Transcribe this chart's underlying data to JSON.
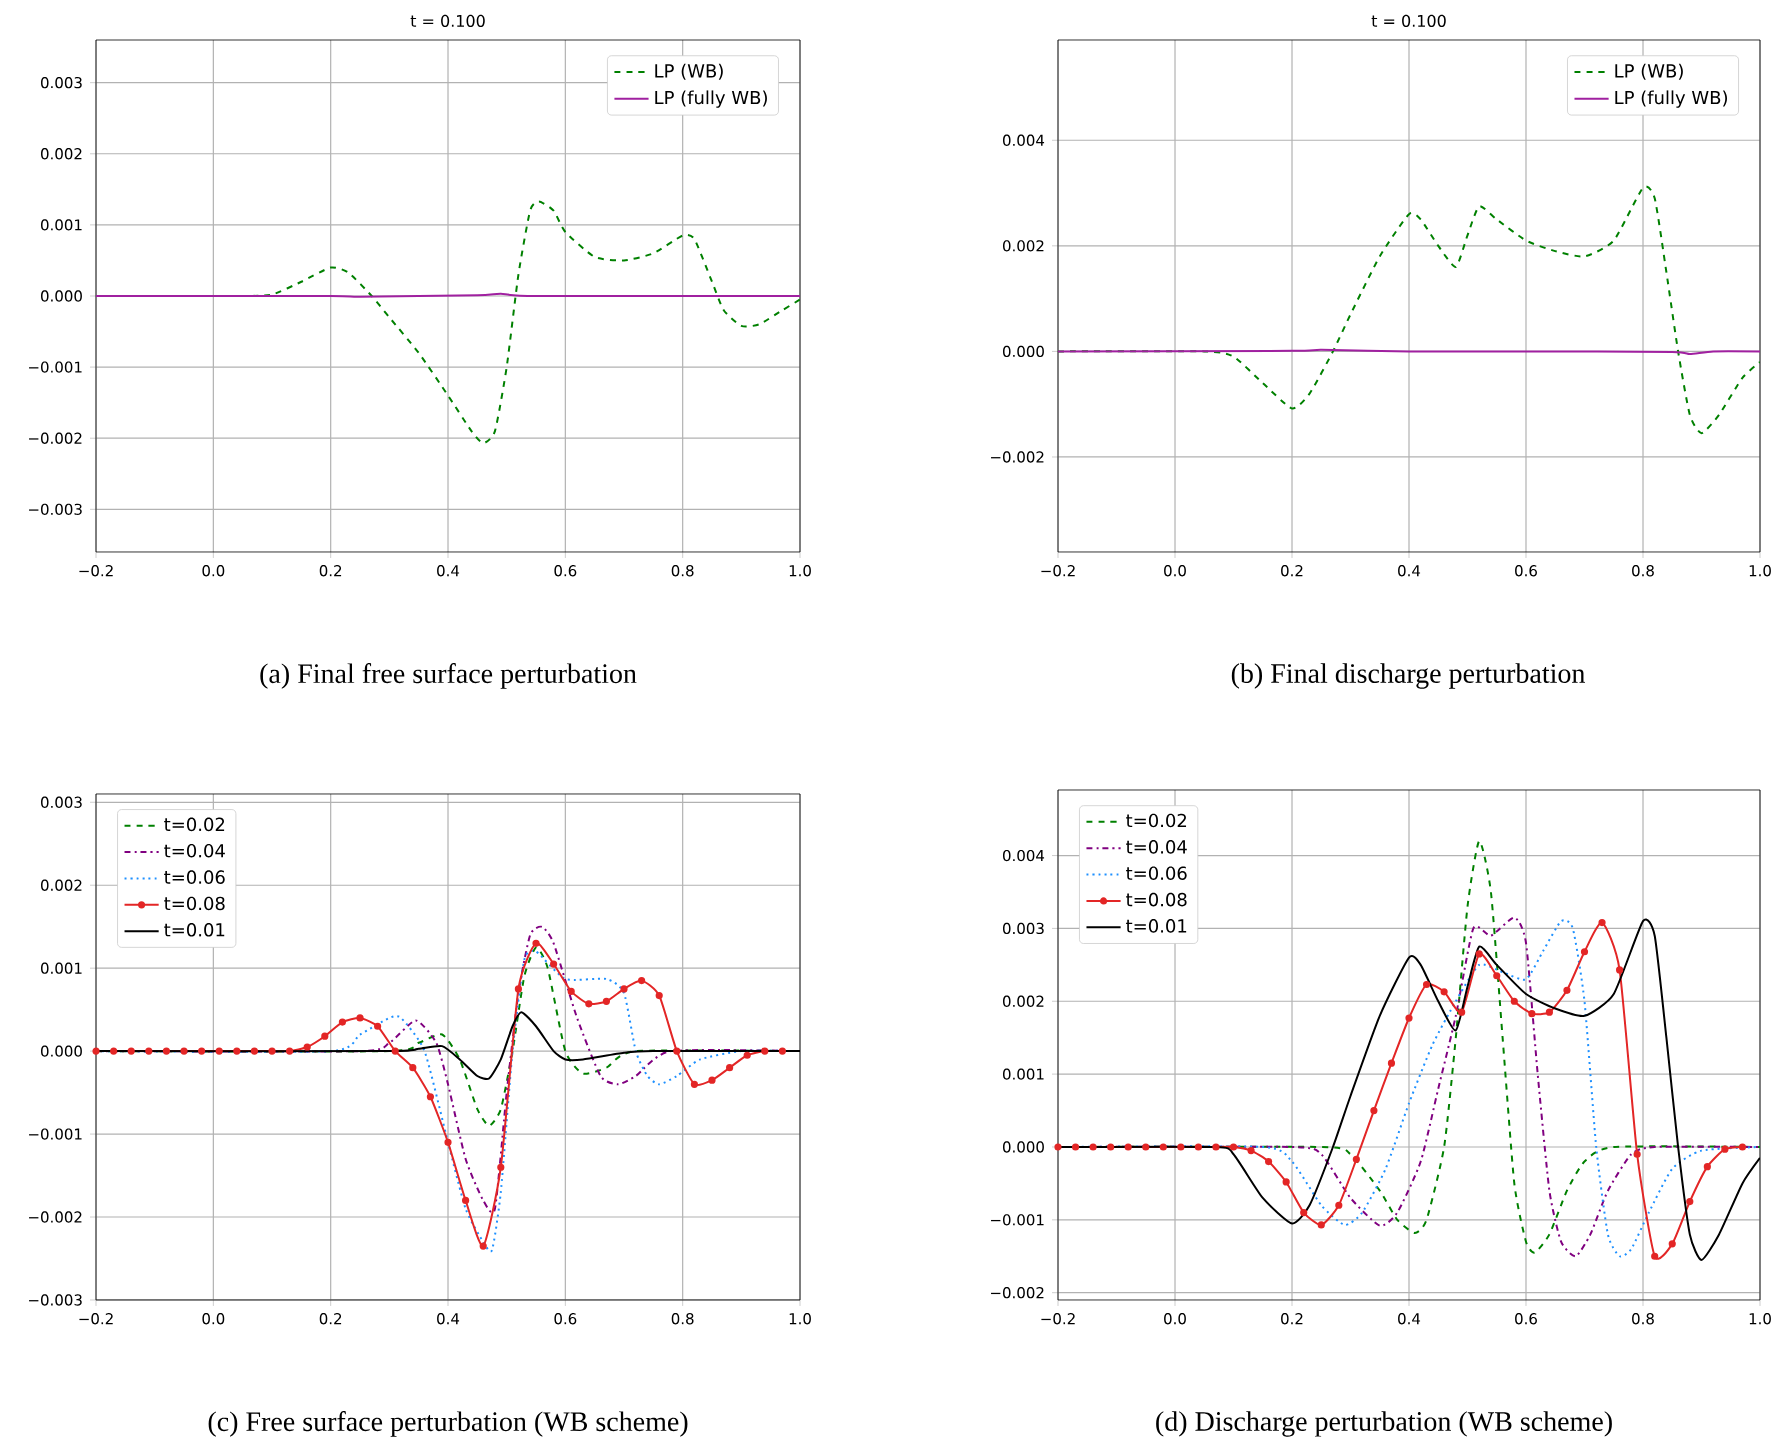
{
  "chart_data": [
    {
      "type": "line",
      "title": "t = 0.100",
      "annotations": [
        "(a) Final free surface perturbation"
      ],
      "xlim": [
        -0.2,
        1.0
      ],
      "ylim": [
        -0.0036,
        0.0036
      ],
      "grid": true,
      "legend": "top right",
      "xticks": [
        {
          "value": -0.2,
          "label": "−0.2"
        },
        {
          "value": 0,
          "label": "0.0"
        },
        {
          "value": 0.2,
          "label": "0.2"
        },
        {
          "value": 0.4,
          "label": "0.4"
        },
        {
          "value": 0.6,
          "label": "0.6"
        },
        {
          "value": 0.8,
          "label": "0.8"
        },
        {
          "value": 1.0,
          "label": "1.0"
        }
      ],
      "yticks": [
        {
          "value": -0.003,
          "label": "−0.003"
        },
        {
          "value": -0.002,
          "label": "−0.002"
        },
        {
          "value": -0.001,
          "label": "−0.001"
        },
        {
          "value": 0,
          "label": "0.000"
        },
        {
          "value": 0.001,
          "label": "0.001"
        },
        {
          "value": 0.002,
          "label": "0.002"
        },
        {
          "value": 0.003,
          "label": "0.003"
        }
      ],
      "series": [
        {
          "name": "LP (WB)",
          "color": "#008000",
          "line_style": "dashed",
          "x": [
            -0.2,
            0.05,
            0.1,
            0.15,
            0.2,
            0.23,
            0.27,
            0.3,
            0.35,
            0.4,
            0.44,
            0.46,
            0.48,
            0.5,
            0.52,
            0.54,
            0.555,
            0.58,
            0.6,
            0.65,
            0.7,
            0.75,
            0.8,
            0.82,
            0.85,
            0.87,
            0.9,
            0.93,
            0.97,
            1.0
          ],
          "values": [
            0,
            0,
            2e-05,
            0.0002,
            0.0004,
            0.00033,
            0,
            -0.0003,
            -0.0008,
            -0.0014,
            -0.0019,
            -0.00207,
            -0.0019,
            -0.001,
            0.0003,
            0.0012,
            0.00133,
            0.0012,
            0.0009,
            0.00055,
            0.0005,
            0.0006,
            0.00085,
            0.0008,
            0.0002,
            -0.0002,
            -0.00042,
            -0.0004,
            -0.0002,
            -5e-05
          ]
        },
        {
          "name": "LP (fully WB)",
          "color": "#a020a0",
          "line_style": "solid",
          "x": [
            -0.2,
            0.2,
            0.25,
            0.45,
            0.49,
            0.55,
            1.0
          ],
          "values": [
            0,
            0,
            -1e-05,
            1e-05,
            3e-05,
            0,
            0
          ]
        }
      ]
    },
    {
      "type": "line",
      "title": "t = 0.100",
      "annotations": [
        "(b) Final discharge perturbation"
      ],
      "xlim": [
        -0.2,
        1.0
      ],
      "ylim": [
        -0.0038,
        0.0059
      ],
      "grid": true,
      "legend": "top right",
      "xticks": [
        {
          "value": -0.2,
          "label": "−0.2"
        },
        {
          "value": 0,
          "label": "0.0"
        },
        {
          "value": 0.2,
          "label": "0.2"
        },
        {
          "value": 0.4,
          "label": "0.4"
        },
        {
          "value": 0.6,
          "label": "0.6"
        },
        {
          "value": 0.8,
          "label": "0.8"
        },
        {
          "value": 1.0,
          "label": "1.0"
        }
      ],
      "yticks": [
        {
          "value": -0.002,
          "label": "−0.002"
        },
        {
          "value": 0,
          "label": "0.000"
        },
        {
          "value": 0.002,
          "label": "0.002"
        },
        {
          "value": 0.004,
          "label": "0.004"
        }
      ],
      "series": [
        {
          "name": "LP (WB)",
          "color": "#008000",
          "line_style": "dashed",
          "x": [
            -0.2,
            0.05,
            0.1,
            0.15,
            0.2,
            0.23,
            0.27,
            0.3,
            0.35,
            0.4,
            0.42,
            0.45,
            0.48,
            0.5,
            0.52,
            0.55,
            0.6,
            0.65,
            0.7,
            0.75,
            0.8,
            0.82,
            0.84,
            0.86,
            0.88,
            0.9,
            0.93,
            0.97,
            1.0
          ],
          "values": [
            0,
            0,
            -0.0001,
            -0.0006,
            -0.00108,
            -0.0008,
            0,
            0.0007,
            0.0018,
            0.0026,
            0.0025,
            0.002,
            0.0016,
            0.0022,
            0.00275,
            0.0025,
            0.0021,
            0.0019,
            0.0018,
            0.0021,
            0.0031,
            0.0029,
            0.0015,
            0,
            -0.0012,
            -0.00155,
            -0.0012,
            -0.0005,
            -0.0002
          ]
        },
        {
          "name": "LP (fully WB)",
          "color": "#a020a0",
          "line_style": "solid",
          "x": [
            -0.2,
            0.2,
            0.25,
            0.4,
            0.6,
            0.85,
            0.88,
            0.92,
            1.0
          ],
          "values": [
            0,
            1e-05,
            3e-05,
            0,
            0,
            -1e-05,
            -5e-05,
            0,
            0
          ]
        }
      ]
    },
    {
      "type": "line",
      "annotations": [
        "(c) Free surface perturbation (WB scheme)"
      ],
      "xlim": [
        -0.2,
        1.0
      ],
      "ylim": [
        -0.003,
        0.0031
      ],
      "grid": true,
      "legend": "top left",
      "xticks": [
        {
          "value": -0.2,
          "label": "−0.2"
        },
        {
          "value": 0,
          "label": "0.0"
        },
        {
          "value": 0.2,
          "label": "0.2"
        },
        {
          "value": 0.4,
          "label": "0.4"
        },
        {
          "value": 0.6,
          "label": "0.6"
        },
        {
          "value": 0.8,
          "label": "0.8"
        },
        {
          "value": 1.0,
          "label": "1.0"
        }
      ],
      "yticks": [
        {
          "value": -0.003,
          "label": "−0.003"
        },
        {
          "value": -0.002,
          "label": "−0.002"
        },
        {
          "value": -0.001,
          "label": "−0.001"
        },
        {
          "value": 0,
          "label": "0.000"
        },
        {
          "value": 0.001,
          "label": "0.001"
        },
        {
          "value": 0.002,
          "label": "0.002"
        },
        {
          "value": 0.003,
          "label": "0.003"
        }
      ],
      "series": [
        {
          "name": "t=0.02",
          "color": "#008000",
          "line_style": "dashed",
          "x": [
            -0.2,
            0.3,
            0.35,
            0.39,
            0.42,
            0.45,
            0.47,
            0.49,
            0.51,
            0.53,
            0.55,
            0.57,
            0.6,
            0.63,
            0.67,
            0.72,
            1.0
          ],
          "values": [
            0,
            0,
            0.0001,
            0.0002,
            -0.0001,
            -0.0007,
            -0.0009,
            -0.0007,
            0,
            0.0009,
            0.00125,
            0.001,
            0,
            -0.00027,
            -0.0002,
            0,
            0
          ]
        },
        {
          "name": "t=0.04",
          "color": "#800080",
          "line_style": "dashdot",
          "x": [
            -0.2,
            0.25,
            0.3,
            0.345,
            0.38,
            0.4,
            0.43,
            0.46,
            0.48,
            0.5,
            0.52,
            0.54,
            0.56,
            0.58,
            0.62,
            0.66,
            0.69,
            0.72,
            0.78,
            1.0
          ],
          "values": [
            0,
            0,
            0.0001,
            0.00037,
            0.0001,
            -0.0004,
            -0.0013,
            -0.0018,
            -0.0019,
            -0.0005,
            0.0007,
            0.0014,
            0.0015,
            0.0013,
            0.0004,
            -0.0003,
            -0.0004,
            -0.0003,
            0,
            0
          ]
        },
        {
          "name": "t=0.06",
          "color": "#1e90ff",
          "line_style": "dotted",
          "x": [
            -0.2,
            0.2,
            0.25,
            0.3,
            0.32,
            0.36,
            0.4,
            0.43,
            0.46,
            0.475,
            0.49,
            0.51,
            0.53,
            0.55,
            0.6,
            0.67,
            0.7,
            0.72,
            0.74,
            0.76,
            0.79,
            0.83,
            0.9,
            1.0
          ],
          "values": [
            0,
            0,
            0.0002,
            0.0004,
            0.0004,
            0,
            -0.0011,
            -0.0019,
            -0.0023,
            -0.0024,
            -0.0017,
            0,
            0.0011,
            0.0012,
            0.00087,
            0.00087,
            0.0007,
            0,
            -0.0003,
            -0.0004,
            -0.0003,
            -0.0001,
            0,
            0
          ]
        },
        {
          "name": "t=0.08",
          "color": "#e32626",
          "line_style": "solid",
          "marker": "circle",
          "x": [
            -0.2,
            -0.17,
            -0.14,
            -0.11,
            -0.08,
            -0.05,
            -0.02,
            0.01,
            0.04,
            0.07,
            0.1,
            0.13,
            0.16,
            0.19,
            0.22,
            0.25,
            0.28,
            0.31,
            0.34,
            0.37,
            0.4,
            0.43,
            0.46,
            0.49,
            0.52,
            0.55,
            0.58,
            0.61,
            0.64,
            0.67,
            0.7,
            0.73,
            0.76,
            0.79,
            0.82,
            0.85,
            0.88,
            0.91,
            0.94,
            0.97
          ],
          "values": [
            0,
            0,
            0,
            0,
            0,
            0,
            0,
            0,
            0,
            0,
            0,
            0,
            5e-05,
            0.00018,
            0.00035,
            0.0004,
            0.0003,
            0,
            -0.0002,
            -0.00055,
            -0.0011,
            -0.0018,
            -0.00235,
            -0.0014,
            0.00075,
            0.0013,
            0.00105,
            0.00072,
            0.00057,
            0.0006,
            0.00075,
            0.00085,
            0.00067,
            0,
            -0.0004,
            -0.00035,
            -0.0002,
            -5e-05,
            0,
            0
          ]
        },
        {
          "name": "t=0.01",
          "color": "#000000",
          "line_style": "solid",
          "x": [
            -0.2,
            0.3,
            0.35,
            0.39,
            0.42,
            0.45,
            0.47,
            0.49,
            0.51,
            0.525,
            0.55,
            0.58,
            0.6,
            0.63,
            0.7,
            0.75,
            1.0
          ],
          "values": [
            0,
            0,
            3e-05,
            6e-05,
            -0.0001,
            -0.0003,
            -0.00033,
            -0.0001,
            0.0003,
            0.00047,
            0.0003,
            0,
            -0.0001,
            -0.0001,
            -2e-05,
            0,
            0
          ]
        }
      ]
    },
    {
      "type": "line",
      "annotations": [
        "(d) Discharge perturbation (WB scheme)"
      ],
      "xlim": [
        -0.2,
        1.0
      ],
      "ylim": [
        -0.0021,
        0.0049
      ],
      "grid": true,
      "legend": "top left",
      "xticks": [
        {
          "value": -0.2,
          "label": "−0.2"
        },
        {
          "value": 0,
          "label": "0.0"
        },
        {
          "value": 0.2,
          "label": "0.2"
        },
        {
          "value": 0.4,
          "label": "0.4"
        },
        {
          "value": 0.6,
          "label": "0.6"
        },
        {
          "value": 0.8,
          "label": "0.8"
        },
        {
          "value": 1.0,
          "label": "1.0"
        }
      ],
      "yticks": [
        {
          "value": -0.002,
          "label": "−0.002"
        },
        {
          "value": -0.001,
          "label": "−0.001"
        },
        {
          "value": 0,
          "label": "0.000"
        },
        {
          "value": 0.001,
          "label": "0.001"
        },
        {
          "value": 0.002,
          "label": "0.002"
        },
        {
          "value": 0.003,
          "label": "0.003"
        },
        {
          "value": 0.004,
          "label": "0.004"
        }
      ],
      "series": [
        {
          "name": "t=0.02",
          "color": "#008000",
          "line_style": "dashed",
          "x": [
            -0.2,
            0.25,
            0.3,
            0.35,
            0.38,
            0.41,
            0.43,
            0.46,
            0.48,
            0.5,
            0.52,
            0.54,
            0.56,
            0.58,
            0.6,
            0.615,
            0.64,
            0.67,
            0.7,
            0.75,
            1.0
          ],
          "values": [
            0,
            0,
            -0.0001,
            -0.0006,
            -0.001,
            -0.00118,
            -0.001,
            0,
            0.0015,
            0.0033,
            0.0042,
            0.0035,
            0.0015,
            -0.0005,
            -0.0013,
            -0.00145,
            -0.0012,
            -0.0006,
            -0.0002,
            0,
            0
          ]
        },
        {
          "name": "t=0.04",
          "color": "#800080",
          "line_style": "dashdot",
          "x": [
            -0.2,
            0.2,
            0.25,
            0.3,
            0.35,
            0.38,
            0.42,
            0.45,
            0.48,
            0.51,
            0.54,
            0.58,
            0.6,
            0.62,
            0.64,
            0.66,
            0.685,
            0.71,
            0.74,
            0.78,
            0.82,
            1.0
          ],
          "values": [
            0,
            0,
            -0.0001,
            -0.0007,
            -0.00108,
            -0.0009,
            -0.0002,
            0.0008,
            0.0018,
            0.003,
            0.0029,
            0.00315,
            0.0028,
            0.001,
            -0.0006,
            -0.0013,
            -0.0015,
            -0.0012,
            -0.0006,
            -0.0001,
            0,
            0
          ]
        },
        {
          "name": "t=0.06",
          "color": "#1e90ff",
          "line_style": "dotted",
          "x": [
            -0.2,
            0.15,
            0.2,
            0.25,
            0.29,
            0.32,
            0.36,
            0.4,
            0.44,
            0.48,
            0.52,
            0.56,
            0.6,
            0.63,
            0.66,
            0.68,
            0.7,
            0.72,
            0.74,
            0.76,
            0.78,
            0.81,
            0.85,
            0.9,
            1.0
          ],
          "values": [
            0,
            0,
            -0.0002,
            -0.0008,
            -0.00107,
            -0.0009,
            -0.0003,
            0.0006,
            0.0014,
            0.002,
            0.0025,
            0.0024,
            0.0023,
            0.0027,
            0.0031,
            0.003,
            0.002,
            0,
            -0.0012,
            -0.0015,
            -0.0014,
            -0.0009,
            -0.0003,
            -5e-05,
            0
          ]
        },
        {
          "name": "t=0.08",
          "color": "#e32626",
          "line_style": "solid",
          "marker": "circle",
          "x": [
            -0.2,
            -0.17,
            -0.14,
            -0.11,
            -0.08,
            -0.05,
            -0.02,
            0.01,
            0.04,
            0.07,
            0.1,
            0.13,
            0.16,
            0.19,
            0.22,
            0.25,
            0.28,
            0.31,
            0.34,
            0.37,
            0.4,
            0.43,
            0.46,
            0.49,
            0.52,
            0.55,
            0.58,
            0.61,
            0.64,
            0.67,
            0.7,
            0.73,
            0.76,
            0.79,
            0.82,
            0.85,
            0.88,
            0.91,
            0.94,
            0.97
          ],
          "values": [
            0,
            0,
            0,
            0,
            0,
            0,
            0,
            0,
            0,
            0,
            0,
            -5e-05,
            -0.0002,
            -0.00048,
            -0.0009,
            -0.00107,
            -0.0008,
            -0.00017,
            0.0005,
            0.00115,
            0.00177,
            0.00223,
            0.00213,
            0.00185,
            0.00265,
            0.00235,
            0.002,
            0.00183,
            0.00185,
            0.00215,
            0.00268,
            0.00308,
            0.00243,
            -0.0001,
            -0.0015,
            -0.00133,
            -0.00075,
            -0.00027,
            -3e-05,
            0
          ]
        },
        {
          "name": "t=0.01",
          "color": "#000000",
          "line_style": "solid",
          "x": [
            -0.2,
            0.07,
            0.1,
            0.15,
            0.2,
            0.23,
            0.27,
            0.3,
            0.35,
            0.4,
            0.42,
            0.45,
            0.48,
            0.5,
            0.52,
            0.55,
            0.6,
            0.65,
            0.7,
            0.75,
            0.8,
            0.82,
            0.84,
            0.86,
            0.88,
            0.9,
            0.93,
            0.97,
            1.0
          ],
          "values": [
            0,
            0,
            -0.0001,
            -0.0007,
            -0.00105,
            -0.0008,
            0,
            0.0007,
            0.0018,
            0.0026,
            0.0025,
            0.002,
            0.0016,
            0.0022,
            0.00275,
            0.0025,
            0.0021,
            0.0019,
            0.0018,
            0.0021,
            0.0031,
            0.0029,
            0.0015,
            0,
            -0.0012,
            -0.00155,
            -0.0012,
            -0.0005,
            -0.00015
          ]
        }
      ]
    }
  ]
}
